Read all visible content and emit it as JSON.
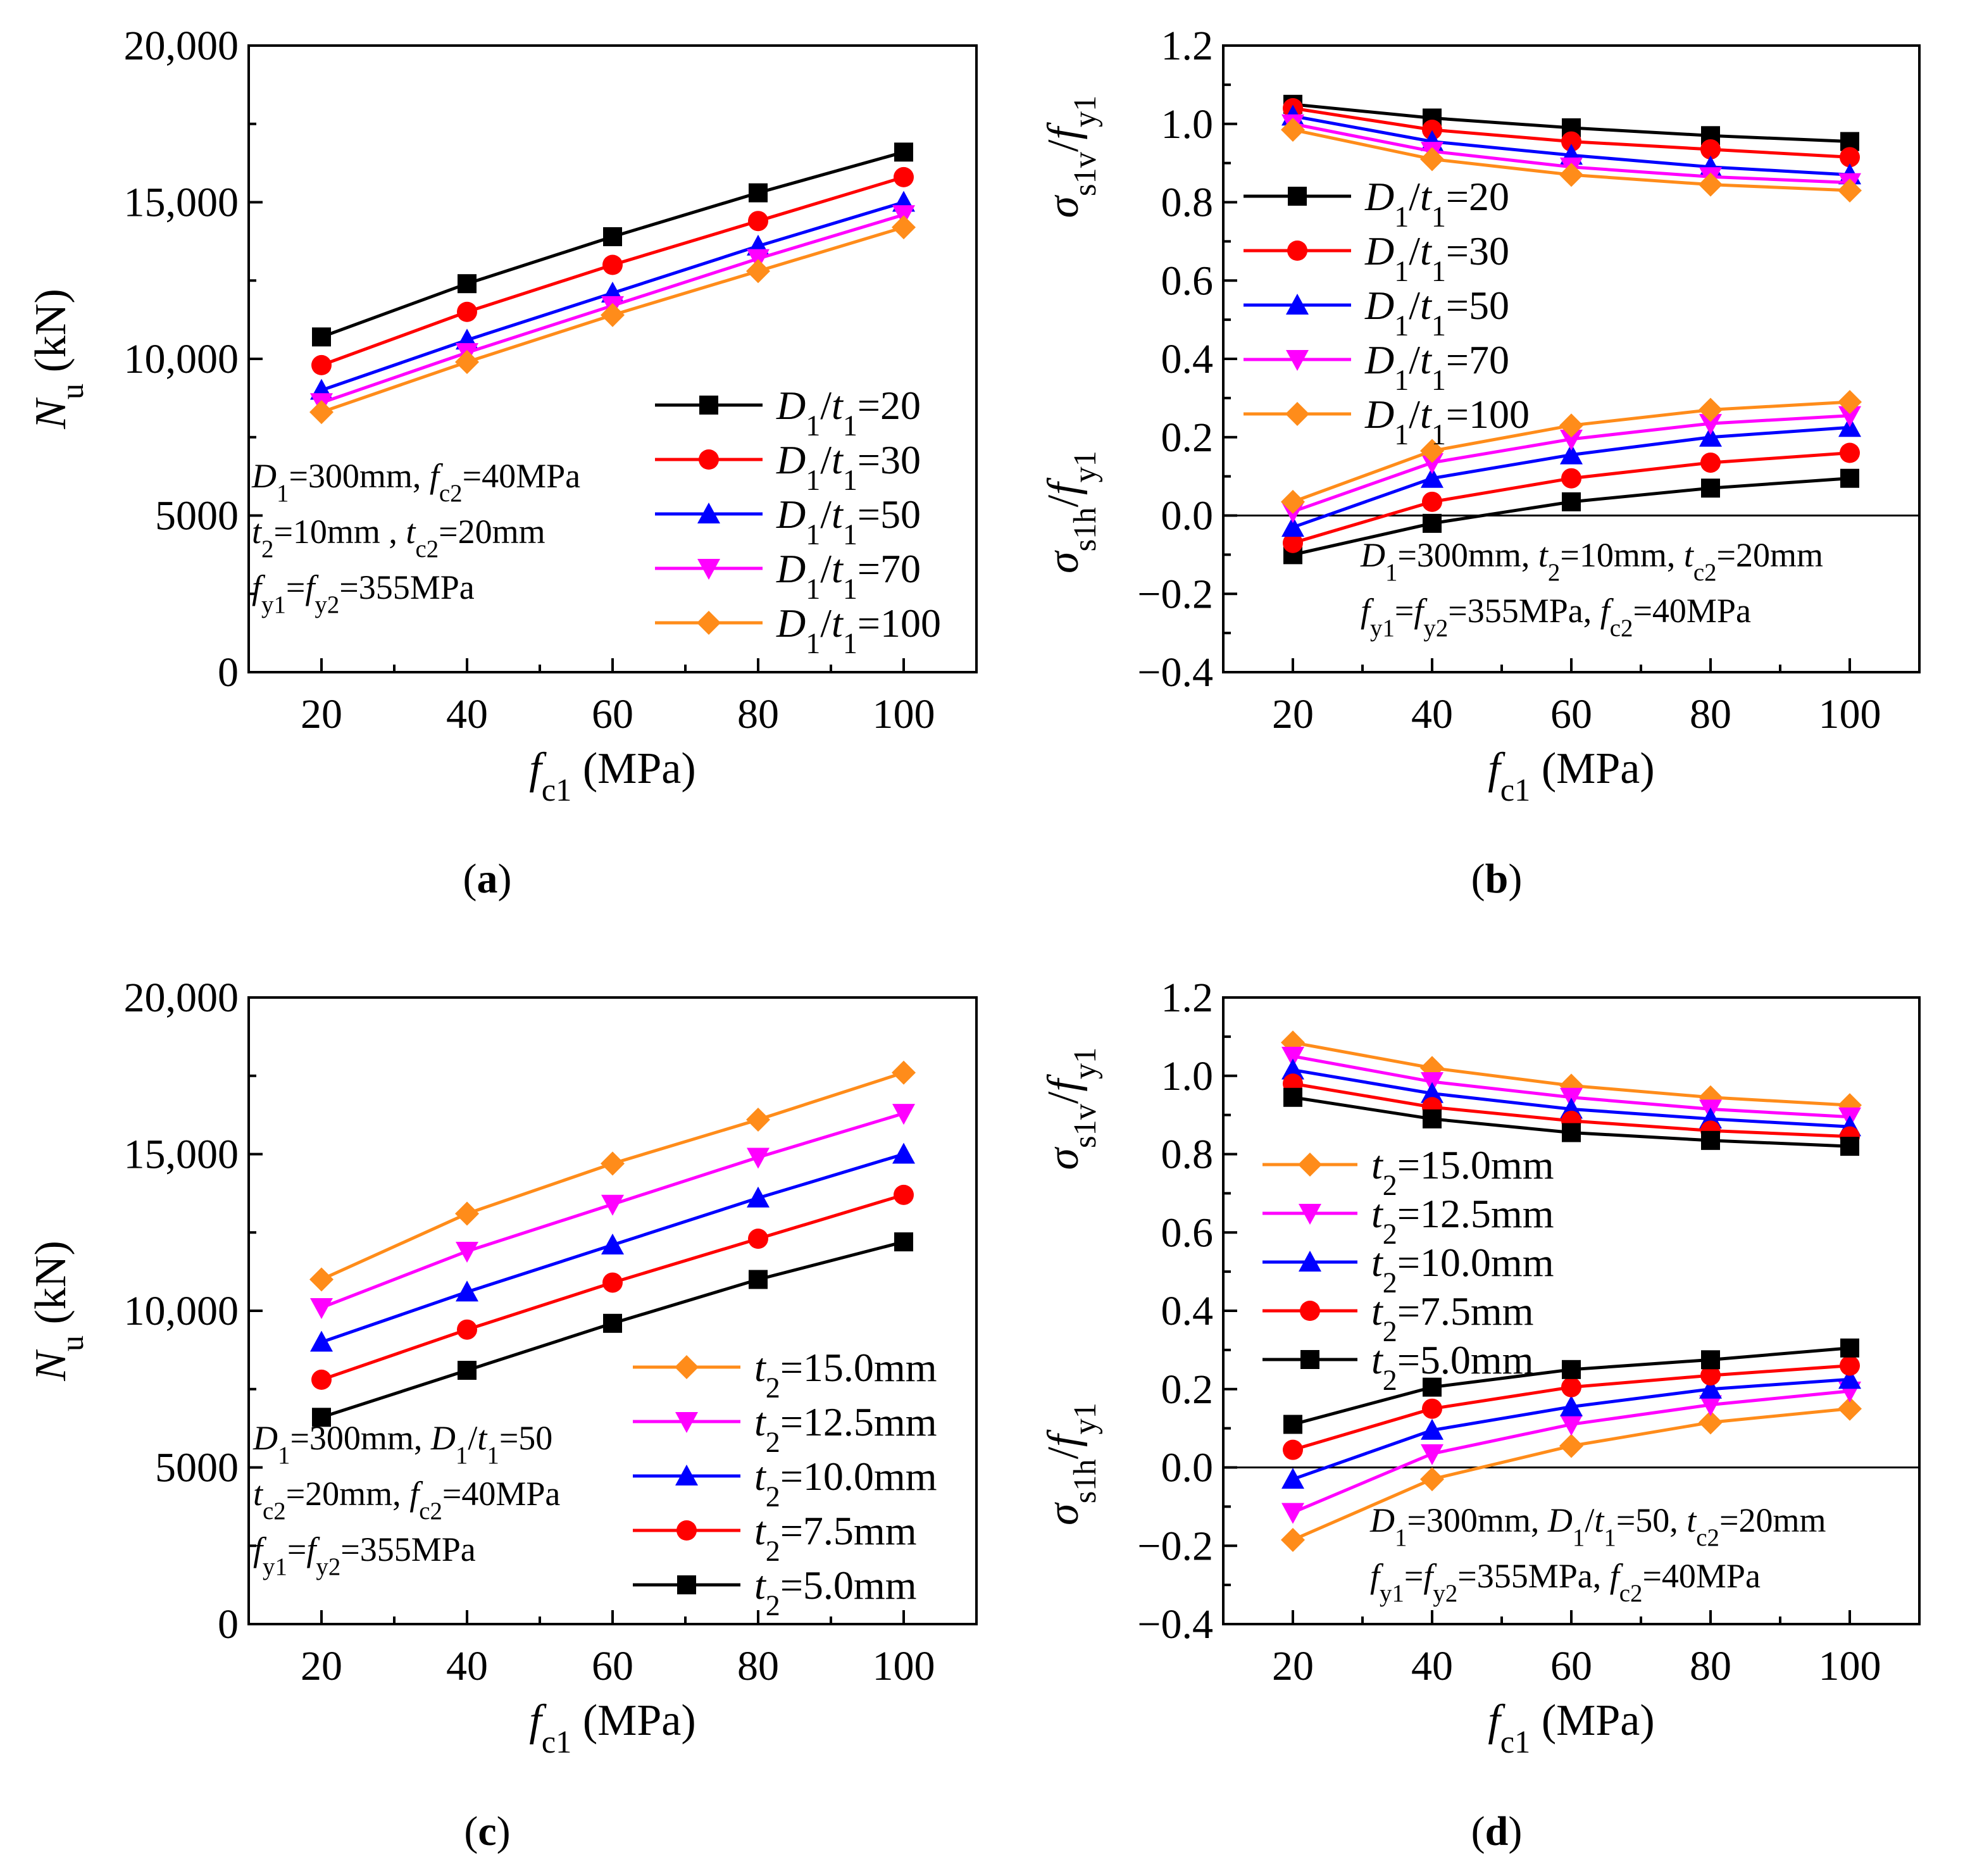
{
  "colors": {
    "black": "#000000",
    "red": "#ff0000",
    "blue": "#0000ff",
    "magenta": "#ff00ff",
    "orange": "#ff8c1a"
  },
  "chart_data": [
    {
      "id": "a",
      "panel_label": "(a)",
      "type": "line",
      "x": [
        20,
        40,
        60,
        80,
        100
      ],
      "xlim": [
        10,
        110
      ],
      "ylim": [
        0,
        20000
      ],
      "yticks": [
        0,
        5000,
        10000,
        15000,
        20000
      ],
      "ytick_labels": [
        "0",
        "5000",
        "10,000",
        "15,000",
        "20,000"
      ],
      "xlabel": "fc1 (MPa)",
      "ylabel": "Nu (kN)",
      "legend_position": "bottom-right",
      "series": [
        {
          "name": "D1/t1=20",
          "color": "#000000",
          "marker": "square",
          "values": [
            10700,
            12400,
            13900,
            15300,
            16600
          ]
        },
        {
          "name": "D1/t1=30",
          "color": "#ff0000",
          "marker": "circle",
          "values": [
            9800,
            11500,
            13000,
            14400,
            15800
          ]
        },
        {
          "name": "D1/t1=50",
          "color": "#0000ff",
          "marker": "triangle-up",
          "values": [
            9000,
            10600,
            12100,
            13600,
            15000
          ]
        },
        {
          "name": "D1/t1=70",
          "color": "#ff00ff",
          "marker": "triangle-down",
          "values": [
            8600,
            10200,
            11700,
            13200,
            14600
          ]
        },
        {
          "name": "D1/t1=100",
          "color": "#ff8c1a",
          "marker": "diamond",
          "values": [
            8300,
            9900,
            11400,
            12800,
            14200
          ]
        }
      ],
      "annotation": [
        "D1=300mm, fc2=40MPa",
        "t2=10mm , tc2=20mm",
        "fy1=fy2=355MPa"
      ]
    },
    {
      "id": "b",
      "panel_label": "(b)",
      "type": "line",
      "x": [
        20,
        40,
        60,
        80,
        100
      ],
      "xlim": [
        10,
        110
      ],
      "ylim": [
        -0.4,
        1.2
      ],
      "yticks": [
        -0.4,
        -0.2,
        0.0,
        0.2,
        0.4,
        0.6,
        0.8,
        1.0,
        1.2
      ],
      "ytick_labels": [
        "−0.4",
        "−0.2",
        "0.0",
        "0.2",
        "0.4",
        "0.6",
        "0.8",
        "1.0",
        "1.2"
      ],
      "xlabel": "fc1 (MPa)",
      "ylabel_upper": "σs1v/fy1",
      "ylabel_lower": "σs1h/fy1",
      "zero_line": true,
      "legend_position": "middle-left",
      "series": [
        {
          "name": "D1/t1=20",
          "color": "#000000",
          "marker": "square",
          "upper": [
            1.05,
            1.015,
            0.99,
            0.97,
            0.955
          ],
          "lower": [
            -0.1,
            -0.02,
            0.035,
            0.07,
            0.095
          ]
        },
        {
          "name": "D1/t1=30",
          "color": "#ff0000",
          "marker": "circle",
          "upper": [
            1.04,
            0.985,
            0.955,
            0.935,
            0.915
          ],
          "lower": [
            -0.07,
            0.035,
            0.095,
            0.135,
            0.16
          ]
        },
        {
          "name": "D1/t1=50",
          "color": "#0000ff",
          "marker": "triangle-up",
          "upper": [
            1.02,
            0.955,
            0.92,
            0.89,
            0.87
          ],
          "lower": [
            -0.03,
            0.095,
            0.155,
            0.2,
            0.225
          ]
        },
        {
          "name": "D1/t1=70",
          "color": "#ff00ff",
          "marker": "triangle-down",
          "upper": [
            1.0,
            0.93,
            0.89,
            0.865,
            0.85
          ],
          "lower": [
            0.01,
            0.135,
            0.195,
            0.235,
            0.255
          ]
        },
        {
          "name": "D1/t1=100",
          "color": "#ff8c1a",
          "marker": "diamond",
          "upper": [
            0.985,
            0.91,
            0.87,
            0.845,
            0.83
          ],
          "lower": [
            0.035,
            0.165,
            0.23,
            0.27,
            0.29
          ]
        }
      ],
      "annotation": [
        "D1=300mm, t2=10mm, tc2=20mm",
        "fy1=fy2=355MPa, fc2=40MPa"
      ]
    },
    {
      "id": "c",
      "panel_label": "(c)",
      "type": "line",
      "x": [
        20,
        40,
        60,
        80,
        100
      ],
      "xlim": [
        10,
        110
      ],
      "ylim": [
        0,
        20000
      ],
      "yticks": [
        0,
        5000,
        10000,
        15000,
        20000
      ],
      "ytick_labels": [
        "0",
        "5000",
        "10,000",
        "15,000",
        "20,000"
      ],
      "xlabel": "fc1 (MPa)",
      "ylabel": "Nu (kN)",
      "legend_position": "bottom-right",
      "series": [
        {
          "name": "t2=15.0mm",
          "color": "#ff8c1a",
          "marker": "diamond",
          "values": [
            11000,
            13100,
            14700,
            16100,
            17600
          ]
        },
        {
          "name": "t2=12.5mm",
          "color": "#ff00ff",
          "marker": "triangle-down",
          "values": [
            10100,
            11900,
            13400,
            14900,
            16300
          ]
        },
        {
          "name": "t2=10.0mm",
          "color": "#0000ff",
          "marker": "triangle-up",
          "values": [
            9000,
            10600,
            12100,
            13600,
            15000
          ]
        },
        {
          "name": "t2=7.5mm",
          "color": "#ff0000",
          "marker": "circle",
          "values": [
            7800,
            9400,
            10900,
            12300,
            13700
          ]
        },
        {
          "name": "t2=5.0mm",
          "color": "#000000",
          "marker": "square",
          "values": [
            6600,
            8100,
            9600,
            11000,
            12200
          ]
        }
      ],
      "annotation": [
        "D1=300mm, D1/t1=50",
        "tc2=20mm, fc2=40MPa",
        "fy1=fy2=355MPa"
      ]
    },
    {
      "id": "d",
      "panel_label": "(d)",
      "type": "line",
      "x": [
        20,
        40,
        60,
        80,
        100
      ],
      "xlim": [
        10,
        110
      ],
      "ylim": [
        -0.4,
        1.2
      ],
      "yticks": [
        -0.4,
        -0.2,
        0.0,
        0.2,
        0.4,
        0.6,
        0.8,
        1.0,
        1.2
      ],
      "ytick_labels": [
        "−0.4",
        "−0.2",
        "0.0",
        "0.2",
        "0.4",
        "0.6",
        "0.8",
        "1.0",
        "1.2"
      ],
      "xlabel": "fc1 (MPa)",
      "ylabel_upper": "σs1v/fy1",
      "ylabel_lower": "σs1h/fy1",
      "zero_line": true,
      "legend_position": "middle-left",
      "series": [
        {
          "name": "t2=15.0mm",
          "color": "#ff8c1a",
          "marker": "diamond",
          "upper": [
            1.085,
            1.02,
            0.975,
            0.945,
            0.925
          ],
          "lower": [
            -0.185,
            -0.03,
            0.055,
            0.115,
            0.15
          ]
        },
        {
          "name": "t2=12.5mm",
          "color": "#ff00ff",
          "marker": "triangle-down",
          "upper": [
            1.05,
            0.985,
            0.945,
            0.915,
            0.895
          ],
          "lower": [
            -0.115,
            0.035,
            0.11,
            0.16,
            0.195
          ]
        },
        {
          "name": "t2=10.0mm",
          "color": "#0000ff",
          "marker": "triangle-up",
          "upper": [
            1.015,
            0.955,
            0.915,
            0.89,
            0.87
          ],
          "lower": [
            -0.03,
            0.095,
            0.155,
            0.2,
            0.225
          ]
        },
        {
          "name": "t2=7.5mm",
          "color": "#ff0000",
          "marker": "circle",
          "upper": [
            0.98,
            0.92,
            0.885,
            0.86,
            0.845
          ],
          "lower": [
            0.045,
            0.15,
            0.205,
            0.235,
            0.26
          ]
        },
        {
          "name": "t2=5.0mm",
          "color": "#000000",
          "marker": "square",
          "upper": [
            0.945,
            0.89,
            0.855,
            0.835,
            0.82
          ],
          "lower": [
            0.11,
            0.205,
            0.25,
            0.275,
            0.305
          ]
        }
      ],
      "annotation": [
        "D1=300mm, D1/t1=50, tc2=20mm",
        "fy1=fy2=355MPa, fc2=40MPa"
      ]
    }
  ]
}
